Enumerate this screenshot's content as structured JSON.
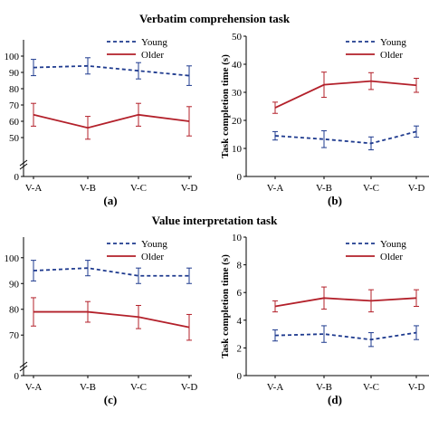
{
  "sections": [
    {
      "title": "Verbatim comprehension task"
    },
    {
      "title": "Value interpretation task"
    }
  ],
  "colors": {
    "young": "#1f3b8f",
    "older": "#b3202a",
    "axis": "#000000"
  },
  "chart_data": [
    {
      "id": "a",
      "panel_label": "(a)",
      "type": "line",
      "categories": [
        "V-A",
        "V-B",
        "V-C",
        "V-D"
      ],
      "ylabel": "",
      "ylim": [
        40,
        110
      ],
      "y_axis_break": true,
      "yticks": [
        0,
        50,
        60,
        70,
        80,
        90,
        100
      ],
      "ytick_labels": [
        "0",
        "50",
        "60",
        "70",
        "80",
        "90",
        "100"
      ],
      "legend_position": "top-right",
      "series": [
        {
          "name": "Young",
          "style": "dashed",
          "values": [
            93,
            94,
            91,
            88
          ],
          "errors": [
            5,
            5,
            5,
            6
          ]
        },
        {
          "name": "Older",
          "style": "solid",
          "values": [
            64,
            56,
            64,
            60
          ],
          "errors": [
            7,
            7,
            7,
            9
          ]
        }
      ]
    },
    {
      "id": "b",
      "panel_label": "(b)",
      "type": "line",
      "categories": [
        "V-A",
        "V-B",
        "V-C",
        "V-D"
      ],
      "ylabel": "Task completion time (s)",
      "ylim": [
        0,
        50
      ],
      "yticks": [
        0,
        10,
        20,
        30,
        40,
        50
      ],
      "ytick_labels": [
        "0",
        "10",
        "20",
        "30",
        "40",
        "50"
      ],
      "legend_position": "top-right",
      "series": [
        {
          "name": "Young",
          "style": "dashed",
          "values": [
            14.5,
            13.3,
            11.8,
            16.0
          ],
          "errors": [
            1.5,
            3.0,
            2.3,
            2.0
          ]
        },
        {
          "name": "Older",
          "style": "solid",
          "values": [
            24.5,
            32.7,
            34.0,
            32.5
          ],
          "errors": [
            2.0,
            4.5,
            3.0,
            2.5
          ]
        }
      ]
    },
    {
      "id": "c",
      "panel_label": "(c)",
      "type": "line",
      "categories": [
        "V-A",
        "V-B",
        "V-C",
        "V-D"
      ],
      "ylabel": "",
      "ylim": [
        62,
        108
      ],
      "y_axis_break": true,
      "yticks": [
        0,
        70,
        80,
        90,
        100
      ],
      "ytick_labels": [
        "0",
        "70",
        "80",
        "90",
        "100"
      ],
      "legend_position": "top-right",
      "series": [
        {
          "name": "Young",
          "style": "dashed",
          "values": [
            95,
            96,
            93,
            93
          ],
          "errors": [
            4,
            3,
            3,
            3
          ]
        },
        {
          "name": "Older",
          "style": "solid",
          "values": [
            79,
            79,
            77,
            73
          ],
          "errors": [
            5.5,
            4,
            4.5,
            5
          ]
        }
      ]
    },
    {
      "id": "d",
      "panel_label": "(d)",
      "type": "line",
      "categories": [
        "V-A",
        "V-B",
        "V-C",
        "V-D"
      ],
      "ylabel": "Task completion time (s)",
      "ylim": [
        0,
        10
      ],
      "yticks": [
        0,
        2,
        4,
        6,
        8,
        10
      ],
      "ytick_labels": [
        "0",
        "2",
        "4",
        "6",
        "8",
        "10"
      ],
      "legend_position": "top-right",
      "series": [
        {
          "name": "Young",
          "style": "dashed",
          "values": [
            2.9,
            3.0,
            2.6,
            3.1
          ],
          "errors": [
            0.4,
            0.6,
            0.5,
            0.5
          ]
        },
        {
          "name": "Older",
          "style": "solid",
          "values": [
            5.0,
            5.6,
            5.4,
            5.6
          ],
          "errors": [
            0.4,
            0.8,
            0.8,
            0.6
          ]
        }
      ]
    }
  ]
}
